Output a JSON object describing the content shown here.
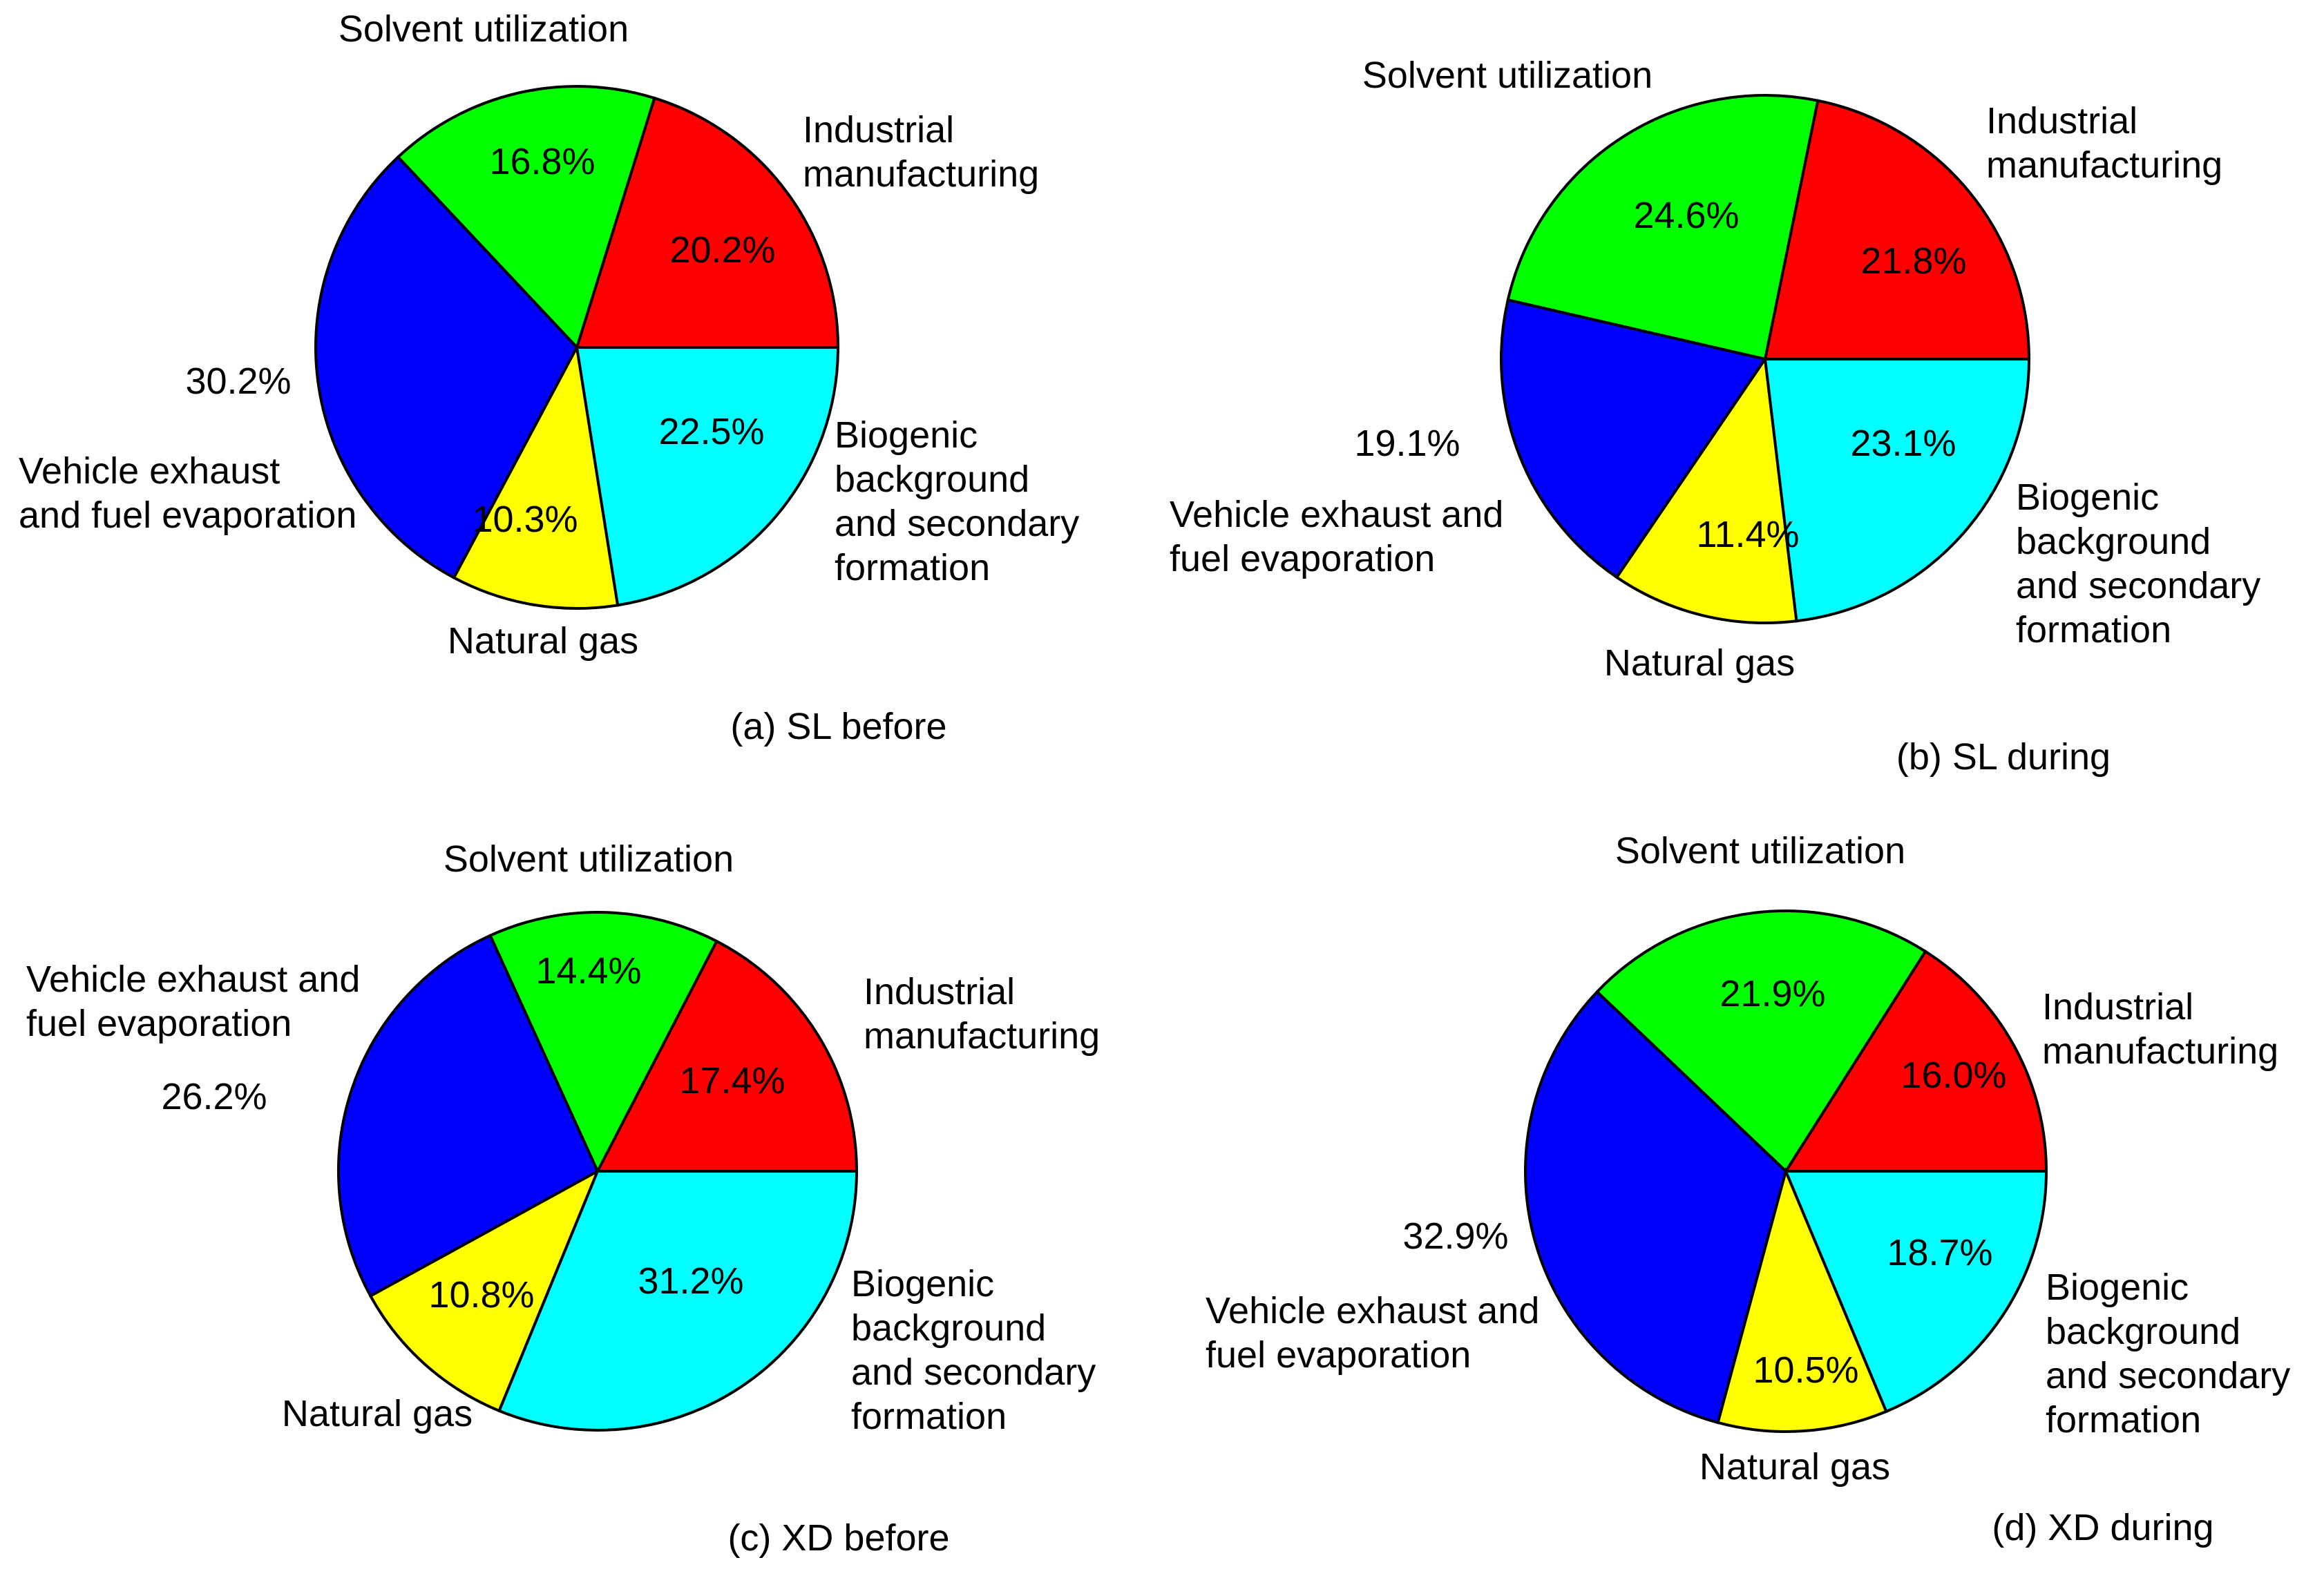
{
  "chart_data": [
    {
      "type": "pie",
      "title": "(a) SL before",
      "start_angle_deg": 0,
      "direction": "counterclockwise",
      "slices": [
        {
          "key": "industrial",
          "label": [
            "Industrial",
            "manufacturing"
          ],
          "value": 20.2,
          "value_label": "20.2%",
          "color": "#ff0000"
        },
        {
          "key": "solvent",
          "label": [
            "Solvent utilization"
          ],
          "value": 16.8,
          "value_label": "16.8%",
          "color": "#00ff00"
        },
        {
          "key": "vehicle",
          "label": [
            "Vehicle exhaust",
            "and fuel evaporation"
          ],
          "value": 30.2,
          "value_label": "30.2%",
          "color": "#0000ff"
        },
        {
          "key": "gas",
          "label": [
            "Natural gas"
          ],
          "value": 10.3,
          "value_label": "10.3%",
          "color": "#ffff00"
        },
        {
          "key": "biogenic",
          "label": [
            "Biogenic",
            "background",
            "and secondary",
            "formation"
          ],
          "value": 22.5,
          "value_label": "22.5%",
          "color": "#00ffff"
        }
      ]
    },
    {
      "type": "pie",
      "title": "(b) SL during",
      "start_angle_deg": 0,
      "direction": "counterclockwise",
      "slices": [
        {
          "key": "industrial",
          "label": [
            "Industrial",
            "manufacturing"
          ],
          "value": 21.8,
          "value_label": "21.8%",
          "color": "#ff0000"
        },
        {
          "key": "solvent",
          "label": [
            "Solvent utilization"
          ],
          "value": 24.6,
          "value_label": "24.6%",
          "color": "#00ff00"
        },
        {
          "key": "vehicle",
          "label": [
            "Vehicle exhaust and",
            "fuel evaporation"
          ],
          "value": 19.1,
          "value_label": "19.1%",
          "color": "#0000ff"
        },
        {
          "key": "gas",
          "label": [
            "Natural gas"
          ],
          "value": 11.4,
          "value_label": "11.4%",
          "color": "#ffff00"
        },
        {
          "key": "biogenic",
          "label": [
            "Biogenic",
            "background",
            "and secondary",
            "formation"
          ],
          "value": 23.1,
          "value_label": "23.1%",
          "color": "#00ffff"
        }
      ]
    },
    {
      "type": "pie",
      "title": "(c) XD before",
      "start_angle_deg": 0,
      "direction": "counterclockwise",
      "slices": [
        {
          "key": "industrial",
          "label": [
            "Industrial",
            "manufacturing"
          ],
          "value": 17.4,
          "value_label": "17.4%",
          "color": "#ff0000"
        },
        {
          "key": "solvent",
          "label": [
            "Solvent utilization"
          ],
          "value": 14.4,
          "value_label": "14.4%",
          "color": "#00ff00"
        },
        {
          "key": "vehicle",
          "label": [
            "Vehicle exhaust and",
            "fuel evaporation"
          ],
          "value": 26.2,
          "value_label": "26.2%",
          "color": "#0000ff"
        },
        {
          "key": "gas",
          "label": [
            "Natural gas"
          ],
          "value": 10.8,
          "value_label": "10.8%",
          "color": "#ffff00"
        },
        {
          "key": "biogenic",
          "label": [
            "Biogenic",
            "background",
            "and secondary",
            "formation"
          ],
          "value": 31.2,
          "value_label": "31.2%",
          "color": "#00ffff"
        }
      ]
    },
    {
      "type": "pie",
      "title": "(d) XD during",
      "start_angle_deg": 0,
      "direction": "counterclockwise",
      "slices": [
        {
          "key": "industrial",
          "label": [
            "Industrial",
            "manufacturing"
          ],
          "value": 16.0,
          "value_label": "16.0%",
          "color": "#ff0000"
        },
        {
          "key": "solvent",
          "label": [
            "Solvent utilization"
          ],
          "value": 21.9,
          "value_label": "21.9%",
          "color": "#00ff00"
        },
        {
          "key": "vehicle",
          "label": [
            "Vehicle exhaust and",
            "fuel evaporation"
          ],
          "value": 32.9,
          "value_label": "32.9%",
          "color": "#0000ff"
        },
        {
          "key": "gas",
          "label": [
            "Natural gas"
          ],
          "value": 10.5,
          "value_label": "10.5%",
          "color": "#ffff00"
        },
        {
          "key": "biogenic",
          "label": [
            "Biogenic",
            "background",
            "and secondary",
            "formation"
          ],
          "value": 18.7,
          "value_label": "18.7%",
          "color": "#00ffff"
        }
      ]
    }
  ]
}
